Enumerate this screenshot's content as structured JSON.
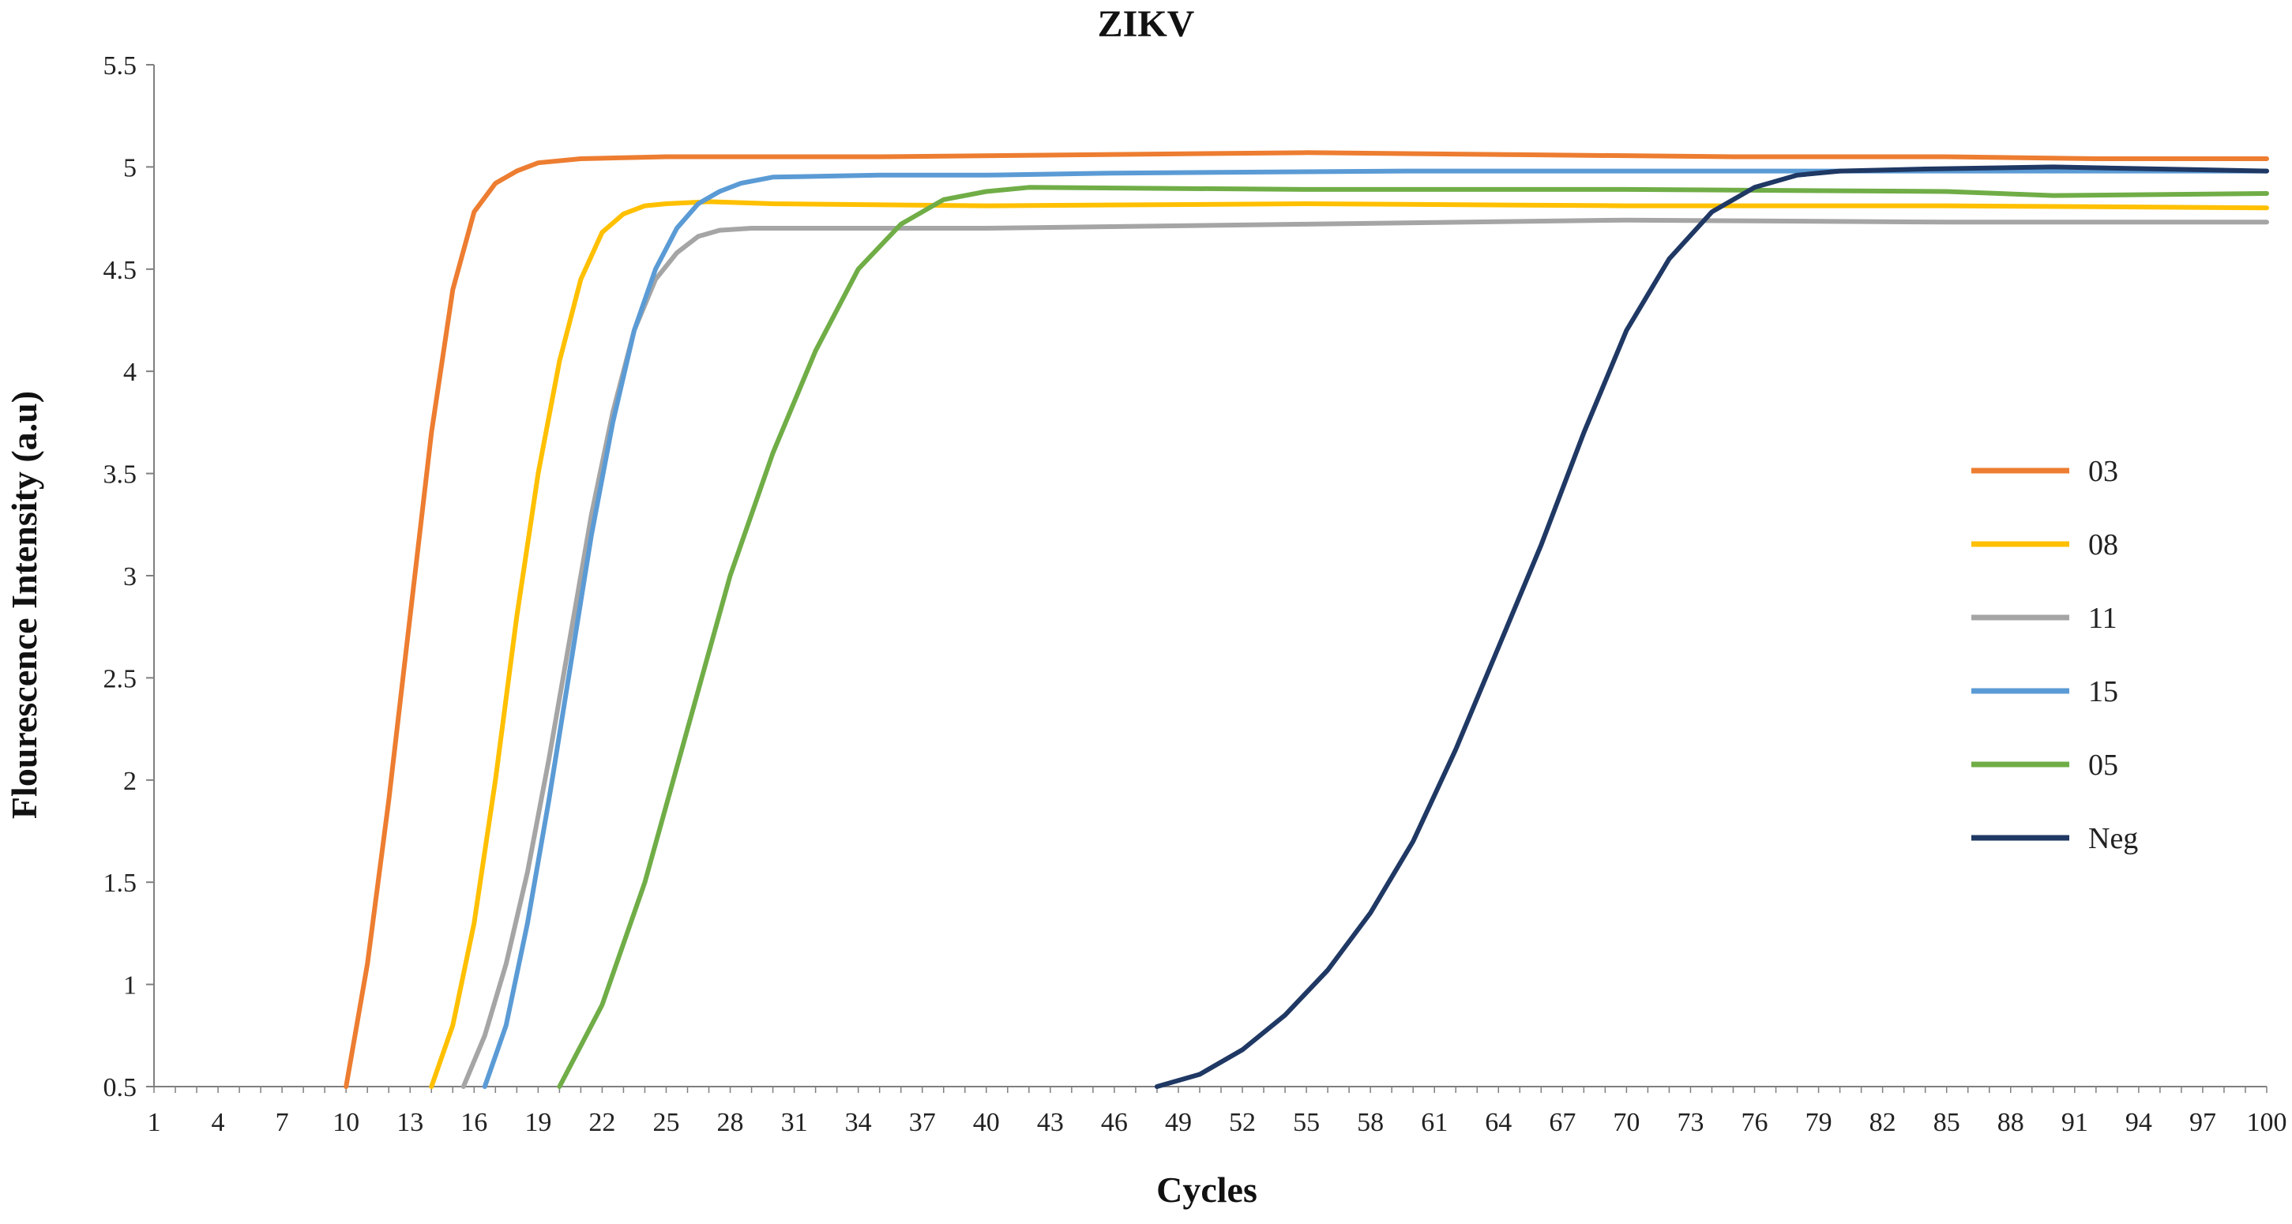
{
  "chart_data": {
    "type": "line",
    "title": "ZIKV",
    "xlabel": "Cycles",
    "ylabel": "Flourescence Intensity (a.u)",
    "xlim": [
      1,
      100
    ],
    "ylim": [
      0.5,
      5.5
    ],
    "x_tick_labels": [
      "1",
      "4",
      "7",
      "10",
      "13",
      "16",
      "19",
      "22",
      "25",
      "28",
      "31",
      "34",
      "37",
      "40",
      "43",
      "46",
      "49",
      "52",
      "55",
      "58",
      "61",
      "64",
      "67",
      "70",
      "73",
      "76",
      "79",
      "82",
      "85",
      "88",
      "91",
      "94",
      "97",
      "100"
    ],
    "y_tick_labels": [
      "0.5",
      "1",
      "1.5",
      "2",
      "2.5",
      "3",
      "3.5",
      "4",
      "4.5",
      "5",
      "5.5"
    ],
    "legend_position": "right",
    "series": [
      {
        "name": "03",
        "color": "#ED7D31",
        "points": [
          [
            10,
            0.5
          ],
          [
            11,
            1.1
          ],
          [
            12,
            1.9
          ],
          [
            13,
            2.8
          ],
          [
            14,
            3.7
          ],
          [
            15,
            4.4
          ],
          [
            16,
            4.78
          ],
          [
            17,
            4.92
          ],
          [
            18,
            4.98
          ],
          [
            19,
            5.02
          ],
          [
            21,
            5.04
          ],
          [
            25,
            5.05
          ],
          [
            35,
            5.05
          ],
          [
            45,
            5.06
          ],
          [
            55,
            5.07
          ],
          [
            65,
            5.06
          ],
          [
            75,
            5.05
          ],
          [
            85,
            5.05
          ],
          [
            92,
            5.04
          ],
          [
            100,
            5.04
          ]
        ]
      },
      {
        "name": "08",
        "color": "#FFC000",
        "points": [
          [
            14,
            0.5
          ],
          [
            15,
            0.8
          ],
          [
            16,
            1.3
          ],
          [
            17,
            2.0
          ],
          [
            18,
            2.8
          ],
          [
            19,
            3.5
          ],
          [
            20,
            4.05
          ],
          [
            21,
            4.45
          ],
          [
            22,
            4.68
          ],
          [
            23,
            4.77
          ],
          [
            24,
            4.81
          ],
          [
            25,
            4.82
          ],
          [
            27,
            4.83
          ],
          [
            30,
            4.82
          ],
          [
            40,
            4.81
          ],
          [
            55,
            4.82
          ],
          [
            70,
            4.81
          ],
          [
            85,
            4.81
          ],
          [
            100,
            4.8
          ]
        ]
      },
      {
        "name": "11",
        "color": "#A5A5A5",
        "points": [
          [
            15.5,
            0.5
          ],
          [
            16.5,
            0.75
          ],
          [
            17.5,
            1.1
          ],
          [
            18.5,
            1.55
          ],
          [
            19.5,
            2.1
          ],
          [
            20.5,
            2.7
          ],
          [
            21.5,
            3.3
          ],
          [
            22.5,
            3.8
          ],
          [
            23.5,
            4.2
          ],
          [
            24.5,
            4.45
          ],
          [
            25.5,
            4.58
          ],
          [
            26.5,
            4.66
          ],
          [
            27.5,
            4.69
          ],
          [
            29,
            4.7
          ],
          [
            40,
            4.7
          ],
          [
            55,
            4.72
          ],
          [
            70,
            4.74
          ],
          [
            85,
            4.73
          ],
          [
            100,
            4.73
          ]
        ]
      },
      {
        "name": "15",
        "color": "#5B9BD5",
        "points": [
          [
            16.5,
            0.5
          ],
          [
            17.5,
            0.8
          ],
          [
            18.5,
            1.3
          ],
          [
            19.5,
            1.9
          ],
          [
            20.5,
            2.55
          ],
          [
            21.5,
            3.2
          ],
          [
            22.5,
            3.75
          ],
          [
            23.5,
            4.2
          ],
          [
            24.5,
            4.5
          ],
          [
            25.5,
            4.7
          ],
          [
            26.5,
            4.82
          ],
          [
            27.5,
            4.88
          ],
          [
            28.5,
            4.92
          ],
          [
            30,
            4.95
          ],
          [
            35,
            4.96
          ],
          [
            40,
            4.96
          ],
          [
            46,
            4.97
          ],
          [
            60,
            4.98
          ],
          [
            75,
            4.98
          ],
          [
            85,
            4.98
          ],
          [
            100,
            4.98
          ]
        ]
      },
      {
        "name": "05",
        "color": "#70AD47",
        "points": [
          [
            20,
            0.5
          ],
          [
            22,
            0.9
          ],
          [
            24,
            1.5
          ],
          [
            26,
            2.25
          ],
          [
            28,
            3.0
          ],
          [
            30,
            3.6
          ],
          [
            32,
            4.1
          ],
          [
            34,
            4.5
          ],
          [
            36,
            4.72
          ],
          [
            38,
            4.84
          ],
          [
            40,
            4.88
          ],
          [
            42,
            4.9
          ],
          [
            55,
            4.89
          ],
          [
            70,
            4.89
          ],
          [
            85,
            4.88
          ],
          [
            90,
            4.86
          ],
          [
            100,
            4.87
          ]
        ]
      },
      {
        "name": "Neg",
        "color": "#1F3864",
        "points": [
          [
            48,
            0.5
          ],
          [
            50,
            0.56
          ],
          [
            52,
            0.68
          ],
          [
            54,
            0.85
          ],
          [
            56,
            1.07
          ],
          [
            58,
            1.35
          ],
          [
            60,
            1.7
          ],
          [
            62,
            2.15
          ],
          [
            64,
            2.65
          ],
          [
            66,
            3.15
          ],
          [
            68,
            3.7
          ],
          [
            70,
            4.2
          ],
          [
            72,
            4.55
          ],
          [
            74,
            4.78
          ],
          [
            76,
            4.9
          ],
          [
            78,
            4.96
          ],
          [
            80,
            4.98
          ],
          [
            84,
            4.99
          ],
          [
            90,
            5.0
          ],
          [
            100,
            4.98
          ]
        ]
      }
    ]
  }
}
